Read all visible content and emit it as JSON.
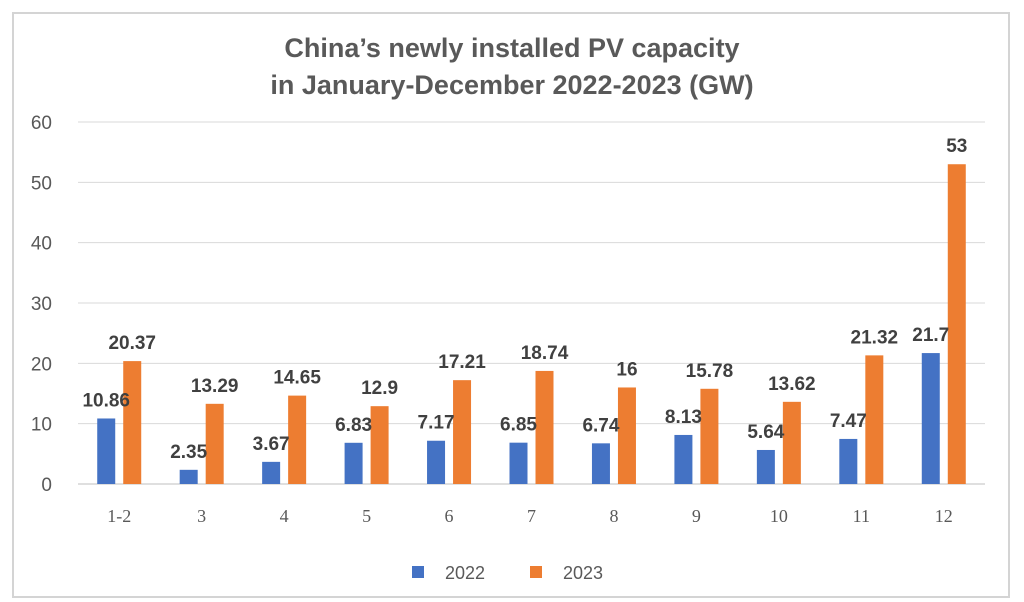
{
  "chart_data": {
    "type": "bar",
    "title_line1": "China’s newly installed PV capacity",
    "title_line2": "in January-December 2022-2023 (GW)",
    "categories": [
      "1-2",
      "3",
      "4",
      "5",
      "6",
      "7",
      "8",
      "9",
      "10",
      "11",
      "12"
    ],
    "series": [
      {
        "name": "2022",
        "color": "#4472c4",
        "values": [
          10.86,
          2.35,
          3.67,
          6.83,
          7.17,
          6.85,
          6.74,
          8.13,
          5.64,
          7.47,
          21.7
        ],
        "labels": [
          "10.86",
          "2.35",
          "3.67",
          "6.83",
          "7.17",
          "6.85",
          "6.74",
          "8.13",
          "5.64",
          "7.47",
          "21.7"
        ]
      },
      {
        "name": "2023",
        "color": "#ed7d31",
        "values": [
          20.37,
          13.29,
          14.65,
          12.9,
          17.21,
          18.74,
          16,
          15.78,
          13.62,
          21.32,
          53
        ],
        "labels": [
          "20.37",
          "13.29",
          "14.65",
          "12.9",
          "17.21",
          "18.74",
          "16",
          "15.78",
          "13.62",
          "21.32",
          "53"
        ]
      }
    ],
    "ylim": [
      0,
      60
    ],
    "yticks": [
      0,
      10,
      20,
      30,
      40,
      50,
      60
    ],
    "grid": true,
    "legend": "bottom-center"
  }
}
